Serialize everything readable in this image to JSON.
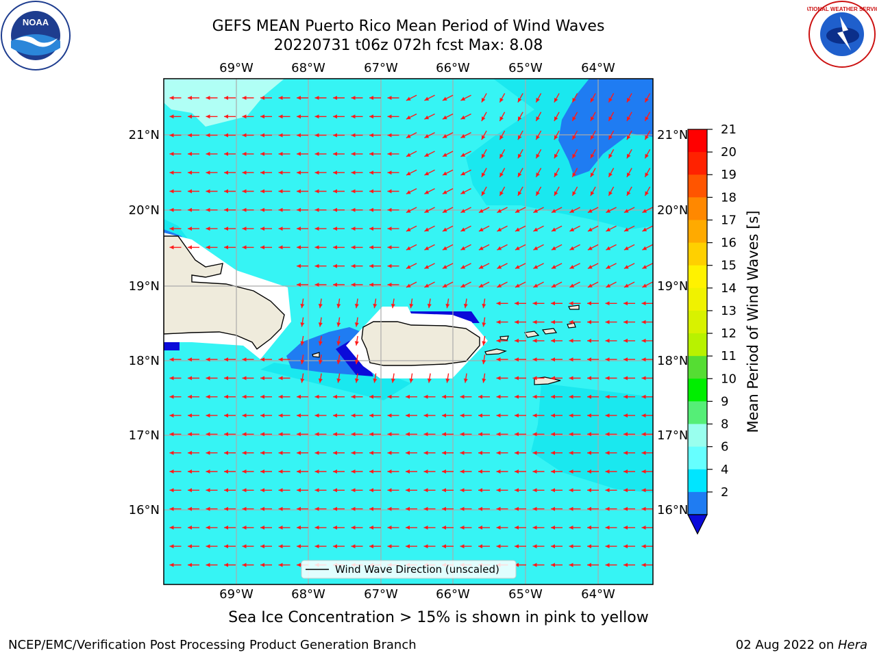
{
  "title": {
    "line1": "GEFS MEAN Puerto Rico Mean Period of Wind Waves",
    "line2": "20220731 t06z 072h fcst   Max: 8.08"
  },
  "map": {
    "lon_labels": [
      "69°W",
      "68°W",
      "67°W",
      "66°W",
      "65°W",
      "64°W"
    ],
    "lat_labels": [
      "21°N",
      "20°N",
      "19°N",
      "18°N",
      "17°N",
      "16°N"
    ],
    "legend_label": "Wind Wave Direction (unscaled)",
    "colors": {
      "ocean_main": "#36f4f4",
      "ocean_light": "#b0fff5",
      "ocean_mid": "#1ae8ef",
      "dark_blue": "#1f7cf2",
      "deep_blue": "#0b0bd9",
      "land": "#efebdc",
      "arrow": "#ff1a1a"
    }
  },
  "colorbar": {
    "label": "Mean Period of Wind Waves [s]",
    "ticks": [
      "21",
      "20",
      "19",
      "18",
      "17",
      "16",
      "15",
      "14",
      "13",
      "12",
      "11",
      "10",
      "9",
      "8",
      "6",
      "4",
      "2"
    ],
    "colors": [
      "#ff0000",
      "#ff2200",
      "#ff5500",
      "#ff8800",
      "#ffaa00",
      "#ffd000",
      "#fff200",
      "#f0f200",
      "#d8f200",
      "#b8f200",
      "#55dd33",
      "#00ee00",
      "#55ee77",
      "#99ffee",
      "#66ffff",
      "#00e5ff",
      "#1f7cf2"
    ],
    "under_color": "#0b0bd9"
  },
  "note": "Sea Ice Concentration > 15% is shown in pink to yellow",
  "footer": {
    "left": "NCEP/EMC/Verification Post Processing Product Generation Branch",
    "right_prefix": "02 Aug 2022 on ",
    "right_italic": "Hera"
  },
  "logos": {
    "noaa": "NOAA",
    "nws": "NATIONAL WEATHER SERVICE"
  }
}
